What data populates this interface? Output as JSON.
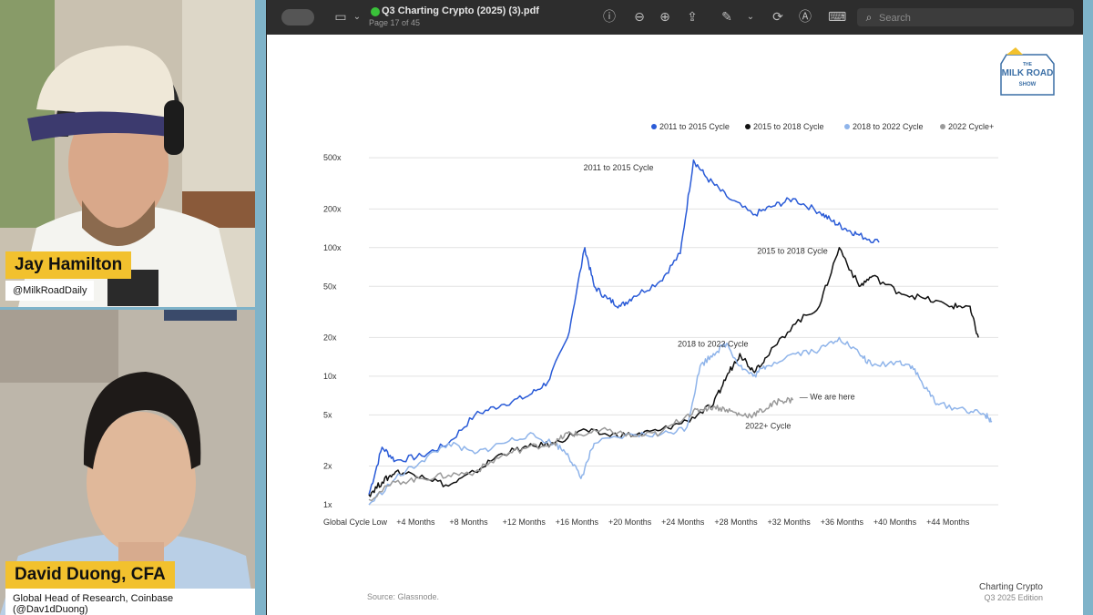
{
  "participants": [
    {
      "name": "Jay Hamilton",
      "handle": "@MilkRoadDaily"
    },
    {
      "name": "David Duong, CFA",
      "handle": "Global Head of Research, Coinbase (@Dav1dDuong)"
    }
  ],
  "viewer": {
    "doc_title": "Q3 Charting Crypto (2025) (3).pdf",
    "page_info": "Page 17 of 45",
    "search_placeholder": "Search"
  },
  "logo": {
    "line1": "THE",
    "line2": "MILK ROAD",
    "line3": "SHOW"
  },
  "page": {
    "source": "Source: Glassnode.",
    "brand": "Charting Crypto",
    "edition": "Q3 2025 Edition"
  },
  "chart_data": {
    "type": "line",
    "y_scale": "log",
    "y_ticks": [
      1,
      2,
      5,
      10,
      20,
      50,
      100,
      200,
      500
    ],
    "y_tick_labels": [
      "1x",
      "2x",
      "5x",
      "10x",
      "20x",
      "50x",
      "100x",
      "200x",
      "500x"
    ],
    "x_ticks": [
      0,
      4,
      8,
      12,
      16,
      20,
      24,
      28,
      32,
      36,
      40,
      44
    ],
    "x_tick_labels": [
      "Global Cycle Low",
      "+4 Months",
      "+8 Months",
      "+12 Months",
      "+16 Months",
      "+20 Months",
      "+24 Months",
      "+28 Months",
      "+32 Months",
      "+36 Months",
      "+40 Months",
      "+44 Months"
    ],
    "xlim": [
      0,
      47.5
    ],
    "ylim": [
      1,
      600
    ],
    "legend_position": "top-right",
    "series": [
      {
        "name": "2011 to 2015 Cycle",
        "color": "#2a5bd7",
        "points": [
          [
            0,
            1.2
          ],
          [
            1,
            2.8
          ],
          [
            2,
            2.2
          ],
          [
            4,
            2.4
          ],
          [
            6,
            3
          ],
          [
            8,
            5
          ],
          [
            10,
            6
          ],
          [
            12,
            7
          ],
          [
            13.5,
            9
          ],
          [
            15,
            20
          ],
          [
            16.3,
            100
          ],
          [
            17,
            50
          ],
          [
            18,
            40
          ],
          [
            19,
            35
          ],
          [
            20,
            42
          ],
          [
            22,
            55
          ],
          [
            23.5,
            90
          ],
          [
            24.5,
            480
          ],
          [
            25.5,
            350
          ],
          [
            27,
            250
          ],
          [
            29,
            180
          ],
          [
            30.5,
            210
          ],
          [
            32,
            240
          ],
          [
            34,
            190
          ],
          [
            35,
            160
          ],
          [
            36,
            140
          ],
          [
            37,
            125
          ],
          [
            38.5,
            110
          ]
        ]
      },
      {
        "name": "2015 to 2018 Cycle",
        "color": "#111111",
        "points": [
          [
            0,
            1.2
          ],
          [
            1,
            1.5
          ],
          [
            2,
            1.8
          ],
          [
            4,
            1.7
          ],
          [
            6,
            1.4
          ],
          [
            8,
            1.8
          ],
          [
            10,
            2.5
          ],
          [
            12,
            2.8
          ],
          [
            14,
            3
          ],
          [
            16,
            3.8
          ],
          [
            18,
            3.5
          ],
          [
            20,
            3.5
          ],
          [
            22,
            3.8
          ],
          [
            24,
            4.5
          ],
          [
            26,
            6
          ],
          [
            27,
            10
          ],
          [
            28,
            15
          ],
          [
            29,
            11
          ],
          [
            30,
            14
          ],
          [
            32,
            25
          ],
          [
            34,
            35
          ],
          [
            35.5,
            100
          ],
          [
            37,
            50
          ],
          [
            38,
            60
          ],
          [
            40,
            45
          ],
          [
            42,
            40
          ],
          [
            44,
            35
          ],
          [
            45.3,
            35
          ],
          [
            46,
            20
          ]
        ]
      },
      {
        "name": "2018 to 2022 Cycle",
        "color": "#8fb4ea",
        "points": [
          [
            0,
            1
          ],
          [
            2,
            1.6
          ],
          [
            4,
            2.2
          ],
          [
            6,
            3
          ],
          [
            8,
            2.5
          ],
          [
            10,
            3
          ],
          [
            12,
            3.5
          ],
          [
            14,
            3
          ],
          [
            15,
            2.5
          ],
          [
            16,
            1.6
          ],
          [
            17,
            3
          ],
          [
            20,
            3.5
          ],
          [
            22,
            3.5
          ],
          [
            24,
            4
          ],
          [
            25,
            12
          ],
          [
            26,
            15
          ],
          [
            27,
            18
          ],
          [
            28,
            12
          ],
          [
            29,
            10
          ],
          [
            30,
            12
          ],
          [
            32,
            15
          ],
          [
            34,
            16
          ],
          [
            35.5,
            20
          ],
          [
            37,
            15
          ],
          [
            38,
            12
          ],
          [
            40,
            13
          ],
          [
            41,
            12
          ],
          [
            42,
            8
          ],
          [
            43,
            6
          ],
          [
            45,
            5.5
          ],
          [
            46.5,
            5
          ],
          [
            47,
            4.5
          ]
        ]
      },
      {
        "name": "2022 Cycle+",
        "color": "#9a9a9a",
        "points": [
          [
            0,
            1.1
          ],
          [
            2,
            1.5
          ],
          [
            4,
            1.6
          ],
          [
            6,
            1.7
          ],
          [
            8,
            1.8
          ],
          [
            10,
            2.4
          ],
          [
            12,
            2.8
          ],
          [
            14,
            3
          ],
          [
            15,
            3.6
          ],
          [
            16,
            3.5
          ],
          [
            18,
            3.8
          ],
          [
            20,
            3.4
          ],
          [
            22,
            3.6
          ],
          [
            24,
            5
          ],
          [
            25,
            5.5
          ],
          [
            26,
            5.8
          ],
          [
            27,
            5.5
          ],
          [
            28,
            5
          ],
          [
            29,
            5
          ],
          [
            30,
            5.6
          ],
          [
            31,
            6.5
          ],
          [
            32,
            6.5
          ]
        ]
      }
    ],
    "annotations": [
      {
        "text": "2011 to 2015 Cycle",
        "x": 16.2,
        "y": 400
      },
      {
        "text": "2015 to 2018 Cycle",
        "x": 29.3,
        "y": 90
      },
      {
        "text": "2018 to 2022 Cycle",
        "x": 23.3,
        "y": 17
      },
      {
        "text": "— We are here",
        "x": 32.5,
        "y": 6.6
      },
      {
        "text": "2022+ Cycle",
        "x": 28.4,
        "y": 3.9
      }
    ]
  }
}
